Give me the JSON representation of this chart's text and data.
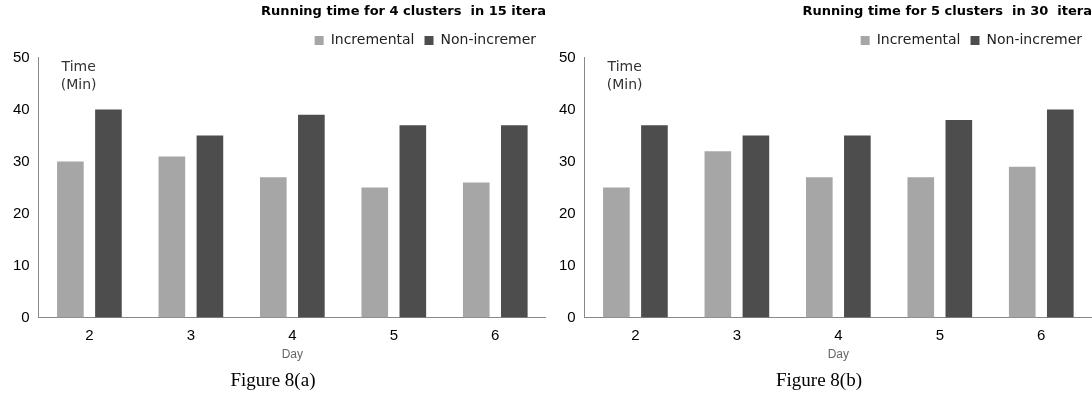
{
  "chart_data": [
    {
      "type": "bar",
      "title": "Running time for 4 clusters  in 15 itera",
      "xlabel": "Day",
      "ylabel": "Time (Min)",
      "categories": [
        "2",
        "3",
        "4",
        "5",
        "6"
      ],
      "series": [
        {
          "name": "Incremental",
          "color": "#a6a6a6",
          "values": [
            30,
            31,
            27,
            25,
            26
          ]
        },
        {
          "name": "Non-incremer",
          "color": "#4d4d4d",
          "values": [
            40,
            35,
            39,
            37,
            37
          ]
        }
      ],
      "ylim": [
        0,
        50
      ],
      "yticks": [
        0,
        10,
        20,
        30,
        40,
        50
      ],
      "grid": false,
      "legend": "top right",
      "annotations": [
        "Figure 8(a)"
      ]
    },
    {
      "type": "bar",
      "title": "Running time for 5 clusters  in 30  itera",
      "xlabel": "Day",
      "ylabel": "Time (Min)",
      "categories": [
        "2",
        "3",
        "4",
        "5",
        "6"
      ],
      "series": [
        {
          "name": "Incremental",
          "color": "#a6a6a6",
          "values": [
            25,
            32,
            27,
            27,
            29
          ]
        },
        {
          "name": "Non-incremer",
          "color": "#4d4d4d",
          "values": [
            37,
            35,
            35,
            38,
            40
          ]
        }
      ],
      "ylim": [
        0,
        50
      ],
      "yticks": [
        0,
        10,
        20,
        30,
        40,
        50
      ],
      "grid": false,
      "legend": "top right",
      "annotations": [
        "Figure 8(b)"
      ]
    }
  ]
}
